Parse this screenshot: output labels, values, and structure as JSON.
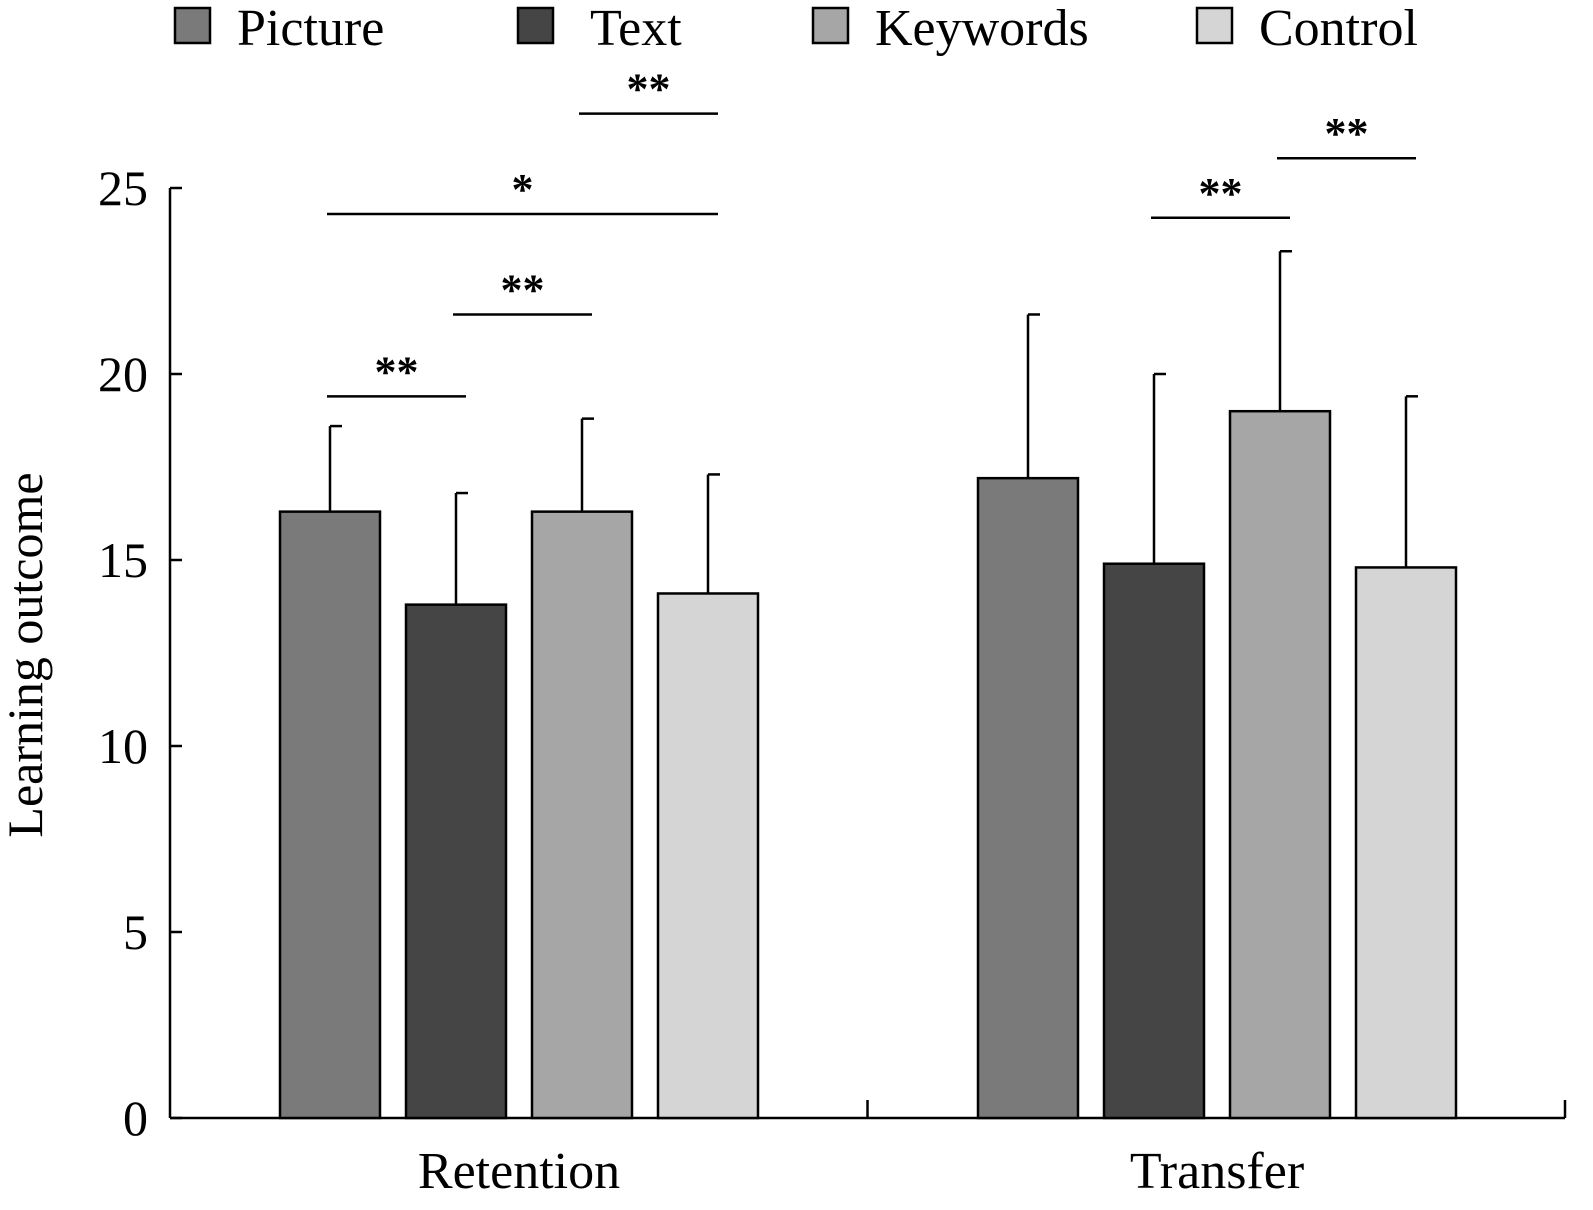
{
  "chart_data": {
    "type": "bar",
    "title": "",
    "xlabel": "",
    "ylabel": "Learning outcome",
    "ylim": [
      0,
      25
    ],
    "yticks": [
      "0",
      "5",
      "10",
      "15",
      "20",
      "25"
    ],
    "categories": [
      "Retention",
      "Transfer"
    ],
    "legend_position": "top",
    "series": [
      {
        "name": "Picture",
        "color": "#7a7a7a",
        "values": [
          16.3,
          17.2
        ],
        "error": [
          2.3,
          4.4
        ]
      },
      {
        "name": "Text",
        "color": "#454545",
        "values": [
          13.8,
          14.9
        ],
        "error": [
          3.0,
          5.1
        ]
      },
      {
        "name": "Keywords",
        "color": "#a6a6a6",
        "values": [
          16.3,
          19.0
        ],
        "error": [
          2.5,
          4.3
        ]
      },
      {
        "name": "Control",
        "color": "#d5d5d5",
        "values": [
          14.1,
          14.8
        ],
        "error": [
          3.2,
          4.6
        ]
      }
    ],
    "significance": [
      {
        "category": 0,
        "from": 0,
        "to": 1,
        "level": 19.4,
        "label": "**"
      },
      {
        "category": 0,
        "from": 1,
        "to": 2,
        "level": 21.6,
        "label": "**"
      },
      {
        "category": 0,
        "from": 0,
        "to": 3,
        "level": 24.3,
        "label": "*"
      },
      {
        "category": 0,
        "from": 2,
        "to": 3,
        "level": 27.0,
        "label": "**"
      },
      {
        "category": 1,
        "from": 1,
        "to": 2,
        "level": 24.2,
        "label": "**"
      },
      {
        "category": 1,
        "from": 2,
        "to": 3,
        "level": 25.8,
        "label": "**"
      }
    ]
  }
}
